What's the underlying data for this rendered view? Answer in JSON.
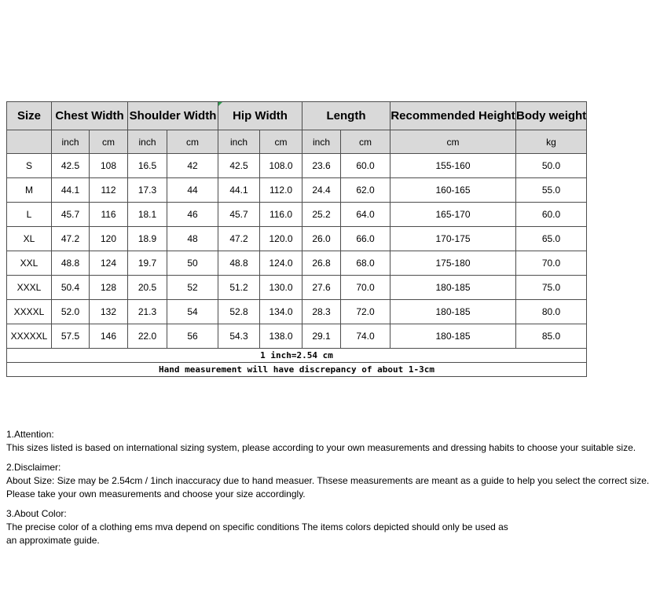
{
  "table": {
    "header_row1": [
      "Size",
      "Chest Width",
      "Shoulder Width",
      "Hip Width",
      "Length",
      "Recommended Height",
      "Body weight"
    ],
    "subheaders": [
      "",
      "inch",
      "cm",
      "inch",
      "cm",
      "inch",
      "cm",
      "inch",
      "cm",
      "cm",
      "kg"
    ],
    "rows": [
      [
        "S",
        "42.5",
        "108",
        "16.5",
        "42",
        "42.5",
        "108.0",
        "23.6",
        "60.0",
        "155-160",
        "50.0"
      ],
      [
        "M",
        "44.1",
        "112",
        "17.3",
        "44",
        "44.1",
        "112.0",
        "24.4",
        "62.0",
        "160-165",
        "55.0"
      ],
      [
        "L",
        "45.7",
        "116",
        "18.1",
        "46",
        "45.7",
        "116.0",
        "25.2",
        "64.0",
        "165-170",
        "60.0"
      ],
      [
        "XL",
        "47.2",
        "120",
        "18.9",
        "48",
        "47.2",
        "120.0",
        "26.0",
        "66.0",
        "170-175",
        "65.0"
      ],
      [
        "XXL",
        "48.8",
        "124",
        "19.7",
        "50",
        "48.8",
        "124.0",
        "26.8",
        "68.0",
        "175-180",
        "70.0"
      ],
      [
        "XXXL",
        "50.4",
        "128",
        "20.5",
        "52",
        "51.2",
        "130.0",
        "27.6",
        "70.0",
        "180-185",
        "75.0"
      ],
      [
        "XXXXL",
        "52.0",
        "132",
        "21.3",
        "54",
        "52.8",
        "134.0",
        "28.3",
        "72.0",
        "180-185",
        "80.0"
      ],
      [
        "XXXXXL",
        "57.5",
        "146",
        "22.0",
        "56",
        "54.3",
        "138.0",
        "29.1",
        "74.0",
        "180-185",
        "85.0"
      ]
    ],
    "footer_rows": [
      "1 inch=2.54 cm",
      "Hand measurement will have discrepancy of about 1-3cm"
    ]
  },
  "notes": [
    {
      "heading": "1.Attention:",
      "lines": [
        "This sizes listed is based on international sizing system, please according to your own measurements and dressing habits to choose your suitable size."
      ]
    },
    {
      "heading": "2.Disclaimer:",
      "lines": [
        "About Size: Size may be 2.54cm / 1inch inaccuracy due to hand measuer. Thsese measurements are meant as a guide to help you select the correct size.",
        "Please take your own measurements and choose your size accordingly."
      ]
    },
    {
      "heading": "3.About Color:",
      "lines": [
        "The precise color of a clothing ems mva depend on specific conditions The items colors depicted should only be used as",
        "an approximate guide."
      ]
    }
  ],
  "colors": {
    "header_background": "#d9d9d9",
    "border": "#4d4d4d",
    "corner_marker_green": "#2e9e4f"
  }
}
